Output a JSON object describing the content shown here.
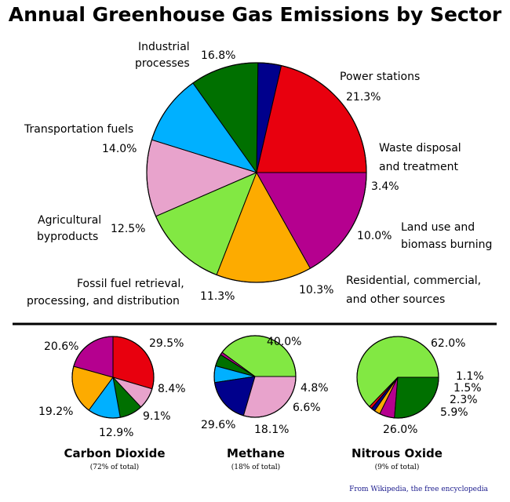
{
  "colors": {
    "power": "#e8000e",
    "industrial": "#b5008f",
    "transport": "#fdab00",
    "agri": "#82e843",
    "fossil": "#e8a3cc",
    "residential": "#00b0ff",
    "landuse": "#007000",
    "waste": "#00008c"
  },
  "chart_data": [
    {
      "type": "pie",
      "title": "Annual Greenhouse Gas Emissions by Sector",
      "slices": [
        {
          "key": "power",
          "label": "Power stations",
          "value": 21.3,
          "value_label": "21.3%"
        },
        {
          "key": "waste",
          "label": "Waste disposal and treatment",
          "value": 3.4,
          "value_label": "3.4%"
        },
        {
          "key": "landuse",
          "label": "Land use and biomass burning",
          "value": 10.0,
          "value_label": "10.0%"
        },
        {
          "key": "residential",
          "label": "Residential, commercial, and other sources",
          "value": 10.3,
          "value_label": "10.3%"
        },
        {
          "key": "fossil",
          "label": "Fossil fuel retrieval, processing, and distribution",
          "value": 11.3,
          "value_label": "11.3%"
        },
        {
          "key": "agri",
          "label": "Agricultural byproducts",
          "value": 12.5,
          "value_label": "12.5%"
        },
        {
          "key": "transport",
          "label": "Transportation fuels",
          "value": 14.0,
          "value_label": "14.0%"
        },
        {
          "key": "industrial",
          "label": "Industrial processes",
          "value": 16.8,
          "value_label": "16.8%"
        }
      ]
    },
    {
      "type": "pie",
      "title": "Carbon Dioxide",
      "subtitle": "(72% of total)",
      "slices": [
        {
          "key": "power",
          "value": 29.5,
          "value_label": "29.5%"
        },
        {
          "key": "fossil",
          "value": 8.4,
          "value_label": "8.4%"
        },
        {
          "key": "landuse",
          "value": 9.1,
          "value_label": "9.1%"
        },
        {
          "key": "residential",
          "value": 12.9,
          "value_label": "12.9%"
        },
        {
          "key": "transport",
          "value": 19.2,
          "value_label": "19.2%"
        },
        {
          "key": "industrial",
          "value": 20.6,
          "value_label": "20.6%"
        }
      ]
    },
    {
      "type": "pie",
      "title": "Methane",
      "subtitle": "(18% of total)",
      "slices": [
        {
          "key": "agri",
          "value": 40.0,
          "value_label": "40.0%"
        },
        {
          "key": "industrial",
          "value": 1.1,
          "value_label": ""
        },
        {
          "key": "landuse",
          "value": 4.8,
          "value_label": "4.8%"
        },
        {
          "key": "residential",
          "value": 6.6,
          "value_label": "6.6%"
        },
        {
          "key": "waste",
          "value": 18.1,
          "value_label": "18.1%"
        },
        {
          "key": "fossil",
          "value": 29.6,
          "value_label": "29.6%"
        }
      ]
    },
    {
      "type": "pie",
      "title": "Nitrous Oxide",
      "subtitle": "(9% of total)",
      "slices": [
        {
          "key": "agri",
          "value": 62.0,
          "value_label": "62.0%"
        },
        {
          "key": "power",
          "value": 1.1,
          "value_label": "1.1%"
        },
        {
          "key": "waste",
          "value": 1.5,
          "value_label": "1.5%"
        },
        {
          "key": "transport",
          "value": 2.3,
          "value_label": "2.3%"
        },
        {
          "key": "industrial",
          "value": 5.9,
          "value_label": "5.9%"
        },
        {
          "key": "landuse",
          "value": 26.0,
          "value_label": "26.0%"
        }
      ]
    }
  ],
  "credit": "From Wikipedia, the free encyclopedia"
}
